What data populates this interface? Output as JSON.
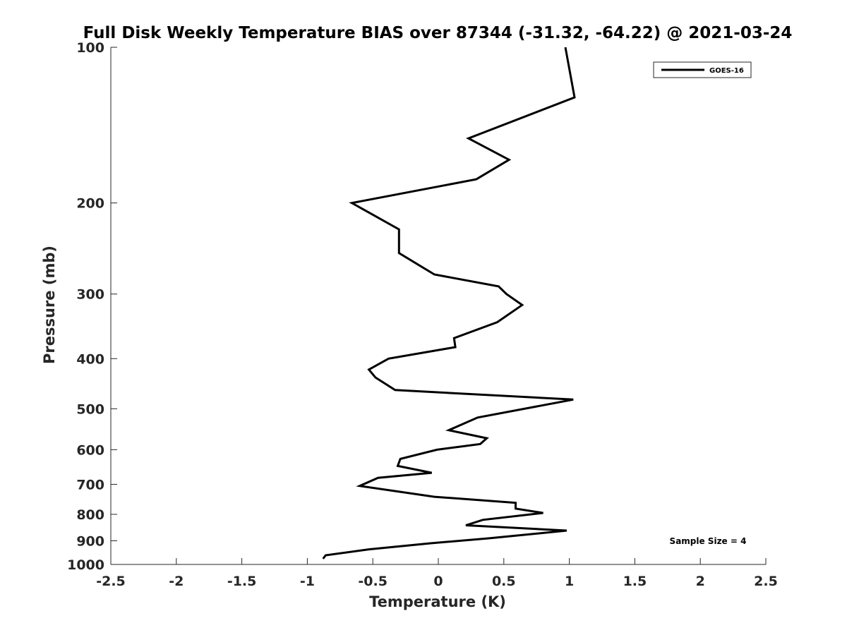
{
  "chart_data": {
    "type": "line",
    "title": "Full Disk Weekly Temperature BIAS over 87344 (-31.32, -64.22) @ 2021-03-24",
    "xlabel": "Temperature (K)",
    "ylabel": "Pressure (mb)",
    "xlim": [
      -2.5,
      2.5
    ],
    "ylim": [
      100,
      1000
    ],
    "yscale": "log",
    "y_reversed": true,
    "x_ticks": [
      -2.5,
      -2,
      -1.5,
      -1,
      -0.5,
      0,
      0.5,
      1,
      1.5,
      2,
      2.5
    ],
    "x_tick_labels": [
      "-2.5",
      "-2",
      "-1.5",
      "-1",
      "-0.5",
      "0",
      "0.5",
      "1",
      "1.5",
      "2",
      "2.5"
    ],
    "y_ticks": [
      100,
      200,
      300,
      400,
      500,
      600,
      700,
      800,
      900,
      1000
    ],
    "y_tick_labels": [
      "100",
      "200",
      "300",
      "400",
      "500",
      "600",
      "700",
      "800",
      "900",
      "1000"
    ],
    "grid": false,
    "legend": {
      "position": "top-right",
      "entries": [
        "GOES-16"
      ]
    },
    "annotation": "Sample Size = 4",
    "series": [
      {
        "name": "GOES-16",
        "color": "#000000",
        "points": [
          {
            "x": 0.97,
            "p": 100
          },
          {
            "x": 1.04,
            "p": 125
          },
          {
            "x": 0.23,
            "p": 150
          },
          {
            "x": 0.54,
            "p": 165
          },
          {
            "x": 0.29,
            "p": 180
          },
          {
            "x": -0.66,
            "p": 200
          },
          {
            "x": -0.3,
            "p": 225
          },
          {
            "x": -0.3,
            "p": 250
          },
          {
            "x": -0.03,
            "p": 275
          },
          {
            "x": 0.46,
            "p": 290
          },
          {
            "x": 0.52,
            "p": 300
          },
          {
            "x": 0.64,
            "p": 315
          },
          {
            "x": 0.45,
            "p": 340
          },
          {
            "x": 0.12,
            "p": 365
          },
          {
            "x": 0.13,
            "p": 380
          },
          {
            "x": -0.38,
            "p": 400
          },
          {
            "x": -0.53,
            "p": 420
          },
          {
            "x": -0.48,
            "p": 435
          },
          {
            "x": -0.33,
            "p": 460
          },
          {
            "x": 1.03,
            "p": 480
          },
          {
            "x": 0.3,
            "p": 520
          },
          {
            "x": 0.08,
            "p": 550
          },
          {
            "x": 0.37,
            "p": 570
          },
          {
            "x": 0.32,
            "p": 585
          },
          {
            "x": -0.01,
            "p": 600
          },
          {
            "x": -0.29,
            "p": 625
          },
          {
            "x": -0.31,
            "p": 645
          },
          {
            "x": -0.05,
            "p": 665
          },
          {
            "x": -0.46,
            "p": 680
          },
          {
            "x": -0.6,
            "p": 705
          },
          {
            "x": -0.03,
            "p": 740
          },
          {
            "x": 0.59,
            "p": 760
          },
          {
            "x": 0.59,
            "p": 780
          },
          {
            "x": 0.8,
            "p": 795
          },
          {
            "x": 0.34,
            "p": 820
          },
          {
            "x": 0.21,
            "p": 840
          },
          {
            "x": 0.98,
            "p": 860
          },
          {
            "x": 0.39,
            "p": 890
          },
          {
            "x": -0.06,
            "p": 910
          },
          {
            "x": -0.53,
            "p": 935
          },
          {
            "x": -0.86,
            "p": 960
          },
          {
            "x": -0.88,
            "p": 975
          }
        ]
      }
    ]
  }
}
